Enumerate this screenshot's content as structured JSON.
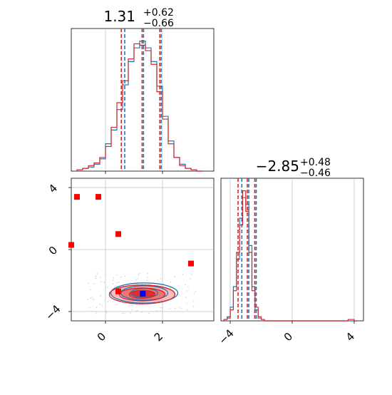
{
  "colors": {
    "series_a": "#1f77b4",
    "series_b": "#d62728",
    "truth_point": "#0000ff",
    "sample_points": "#ff0000",
    "grid": "#b0b0b0"
  },
  "chart_data": {
    "type": "corner",
    "grid": true,
    "param1": {
      "title_value": "1.31",
      "title_plus": "+0.62",
      "title_minus": "−0.66",
      "range": [
        -1.2,
        3.8
      ],
      "quantiles_series_a": [
        0.65,
        1.31,
        1.93
      ],
      "quantiles_series_b": [
        0.58,
        1.31,
        1.93
      ],
      "hist_x": [
        -0.9,
        -0.7,
        -0.5,
        -0.3,
        -0.1,
        0.1,
        0.3,
        0.5,
        0.7,
        0.9,
        1.1,
        1.3,
        1.5,
        1.7,
        1.9,
        2.1,
        2.3,
        2.5,
        2.7,
        2.9,
        3.1,
        3.3
      ],
      "hist_series_a": [
        0.01,
        0.02,
        0.03,
        0.05,
        0.09,
        0.2,
        0.3,
        0.45,
        0.63,
        0.8,
        0.9,
        0.95,
        0.9,
        0.8,
        0.62,
        0.4,
        0.22,
        0.1,
        0.05,
        0.02,
        0.01,
        0.0
      ],
      "hist_series_b": [
        0.01,
        0.02,
        0.04,
        0.06,
        0.1,
        0.18,
        0.32,
        0.5,
        0.66,
        0.82,
        0.93,
        0.92,
        0.88,
        0.78,
        0.58,
        0.38,
        0.2,
        0.1,
        0.04,
        0.02,
        0.01,
        0.0
      ]
    },
    "param2": {
      "title_value": "−2.85",
      "title_plus": "+0.48",
      "title_minus": "−0.46",
      "range": [
        -4.6,
        4.6
      ],
      "quantiles_series_a": [
        -3.3,
        -2.85,
        -2.37
      ],
      "quantiles_series_b": [
        -3.45,
        -2.85,
        -2.37
      ],
      "hist_x": [
        -4.3,
        -4.1,
        -3.9,
        -3.7,
        -3.5,
        -3.3,
        -3.1,
        -2.9,
        -2.7,
        -2.5,
        -2.3,
        -2.1,
        -1.9,
        -1.7,
        -1.5,
        3.5,
        3.7,
        3.9,
        4.1
      ],
      "hist_series_a": [
        0.01,
        0.03,
        0.1,
        0.25,
        0.45,
        0.75,
        0.9,
        0.85,
        0.55,
        0.25,
        0.08,
        0.02,
        0.01,
        0.0,
        0.0,
        0.0,
        0.0,
        0.0,
        0.0
      ],
      "hist_series_b": [
        0.01,
        0.02,
        0.08,
        0.22,
        0.5,
        0.7,
        0.95,
        0.8,
        0.5,
        0.22,
        0.1,
        0.03,
        0.01,
        0.0,
        0.0,
        0.0,
        0.01,
        0.01,
        0.0
      ]
    },
    "scatter_2d": {
      "xlim": [
        -1.2,
        3.8
      ],
      "ylim": [
        -4.6,
        4.6
      ],
      "truth_point": [
        1.31,
        -2.85
      ],
      "sample_points": [
        [
          -1.2,
          0.3
        ],
        [
          -1.0,
          3.4
        ],
        [
          -0.25,
          3.4
        ],
        [
          0.45,
          1.0
        ],
        [
          3.0,
          -0.9
        ],
        [
          0.45,
          -2.7
        ]
      ],
      "contour_center": [
        1.31,
        -2.85
      ],
      "contour_widths_x": [
        0.9,
        1.6,
        2.3
      ],
      "contour_widths_y": [
        0.9,
        1.5,
        2.2
      ]
    },
    "axes": {
      "param1_ticks": [
        "0",
        "2"
      ],
      "param1_tick_values": [
        0,
        2
      ],
      "param2_ticks_left": [
        "4",
        "0",
        "−4"
      ],
      "param2_tick_values_left": [
        4,
        0,
        -4
      ],
      "param2_ticks_bottom": [
        "−4",
        "0",
        "4"
      ],
      "param2_tick_values_bottom": [
        -4,
        0,
        4
      ]
    }
  }
}
